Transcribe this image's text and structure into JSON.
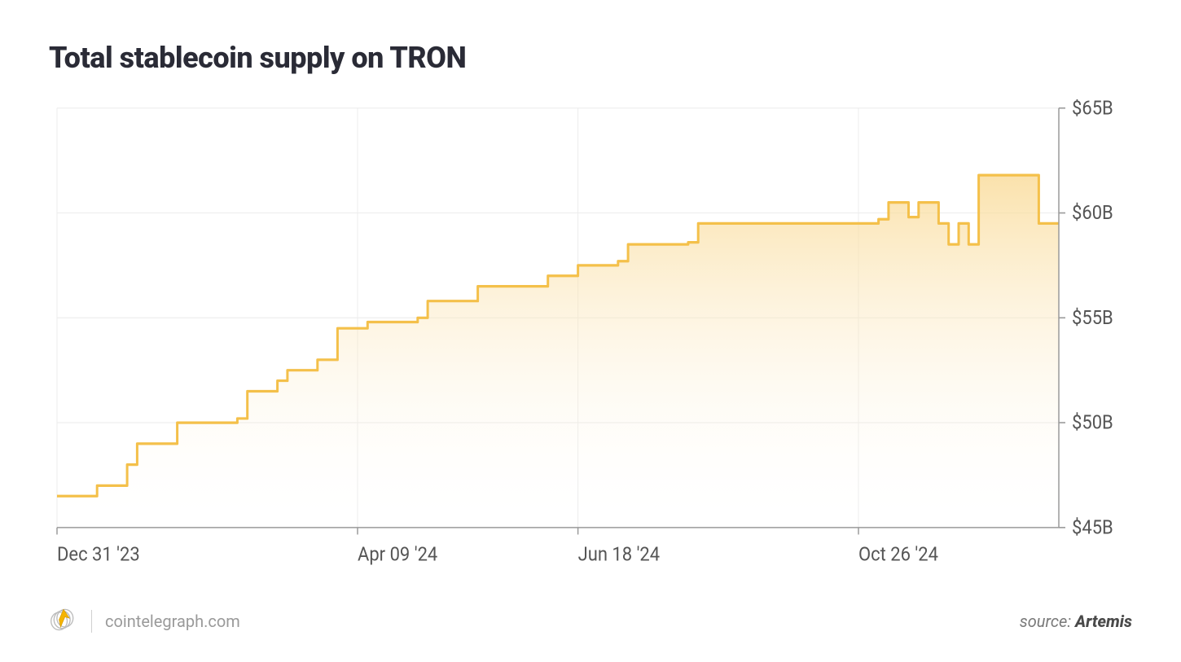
{
  "title": "Total stablecoin supply on TRON",
  "footer": {
    "brand": "cointelegraph.com",
    "source_prefix": "source: ",
    "source_name": "Artemis"
  },
  "chart": {
    "type": "area-step",
    "background_color": "#ffffff",
    "grid_color": "#ececec",
    "axis_color": "#9a9a9a",
    "line_color": "#f4c04a",
    "line_width": 3,
    "fill_top_color": "#f9d890",
    "fill_top_opacity": 0.75,
    "fill_bottom_color": "#ffffff",
    "fill_bottom_opacity": 0.0,
    "ylim": [
      45,
      65
    ],
    "ytick_step": 5,
    "yticks": [
      {
        "v": 45,
        "label": "$45B"
      },
      {
        "v": 50,
        "label": "$50B"
      },
      {
        "v": 55,
        "label": "$55B"
      },
      {
        "v": 60,
        "label": "$60B"
      },
      {
        "v": 65,
        "label": "$65B"
      }
    ],
    "xlim": [
      0,
      100
    ],
    "xticks": [
      {
        "v": 0,
        "label": "Dec 31 '23"
      },
      {
        "v": 30,
        "label": "Apr 09 '24"
      },
      {
        "v": 52,
        "label": "Jun 18 '24"
      },
      {
        "v": 80,
        "label": "Oct 26 '24"
      }
    ],
    "series": [
      {
        "x": 0,
        "y": 46.5
      },
      {
        "x": 4,
        "y": 47.0
      },
      {
        "x": 7,
        "y": 48.0
      },
      {
        "x": 8,
        "y": 49.0
      },
      {
        "x": 10,
        "y": 49.0
      },
      {
        "x": 12,
        "y": 50.0
      },
      {
        "x": 18,
        "y": 50.2
      },
      {
        "x": 19,
        "y": 51.5
      },
      {
        "x": 22,
        "y": 52.0
      },
      {
        "x": 23,
        "y": 52.5
      },
      {
        "x": 26,
        "y": 53.0
      },
      {
        "x": 28,
        "y": 54.5
      },
      {
        "x": 31,
        "y": 54.8
      },
      {
        "x": 36,
        "y": 55.0
      },
      {
        "x": 37,
        "y": 55.8
      },
      {
        "x": 42,
        "y": 56.5
      },
      {
        "x": 48,
        "y": 56.5
      },
      {
        "x": 49,
        "y": 57.0
      },
      {
        "x": 52,
        "y": 57.5
      },
      {
        "x": 56,
        "y": 57.7
      },
      {
        "x": 57,
        "y": 58.5
      },
      {
        "x": 63,
        "y": 58.6
      },
      {
        "x": 64,
        "y": 59.5
      },
      {
        "x": 82,
        "y": 59.7
      },
      {
        "x": 83,
        "y": 60.5
      },
      {
        "x": 85,
        "y": 59.8
      },
      {
        "x": 86,
        "y": 60.5
      },
      {
        "x": 88,
        "y": 59.5
      },
      {
        "x": 89,
        "y": 58.5
      },
      {
        "x": 90,
        "y": 59.5
      },
      {
        "x": 91,
        "y": 58.5
      },
      {
        "x": 92,
        "y": 61.8
      },
      {
        "x": 97,
        "y": 61.8
      },
      {
        "x": 98,
        "y": 59.5
      }
    ],
    "label_fontsize": 22,
    "tick_fontsize": 22
  }
}
